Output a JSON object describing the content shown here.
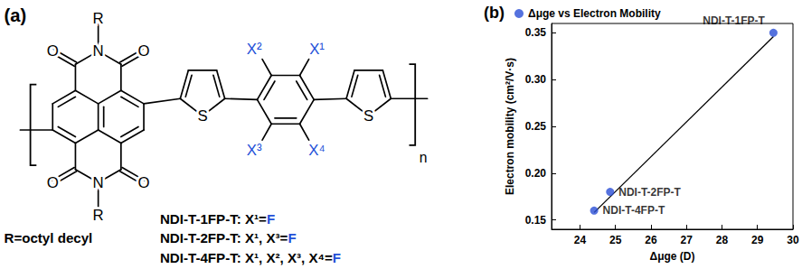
{
  "panel_a": {
    "label": "(a)",
    "structure": {
      "imide_substituent": "R",
      "imide_atom": "N",
      "carbonyl_atom": "O",
      "thiophene_atom": "S",
      "positions": [
        "X¹",
        "X²",
        "X³",
        "X⁴"
      ],
      "repeat": "n"
    },
    "substituent_note": "R=octyl decyl",
    "compounds": [
      {
        "text": "NDI-T-1FP-T: X¹=",
        "highlight": "F"
      },
      {
        "text": "NDI-T-2FP-T: X¹, X³=",
        "highlight": "F"
      },
      {
        "text": "NDI-T-4FP-T: X¹, X², X³, X⁴=",
        "highlight": "F"
      }
    ],
    "highlight_color": "#2350d8"
  },
  "chart_data": {
    "type": "scatter",
    "panel_label": "(b)",
    "x_label": "Δμge (D)",
    "y_label": "Electron mobility (cm²/V·s)",
    "xlim": [
      23.2,
      30
    ],
    "xticks": [
      24,
      25,
      26,
      27,
      28,
      29,
      30
    ],
    "ylim": [
      0.14,
      0.36
    ],
    "yticks": [
      0.15,
      {
        "value": 0.2,
        "label": "0.20"
      },
      0.25,
      {
        "value": 0.3,
        "label": "0.30"
      },
      0.35
    ],
    "grid": false,
    "legend": "upper left",
    "series": [
      {
        "name": "Δμge vs Electron Mobility",
        "color": "#2b4fd6",
        "marker": "circle",
        "x": [
          29.45,
          24.85,
          24.4
        ],
        "values": [
          0.35,
          0.18,
          0.16
        ],
        "point_labels": [
          "NDI-T-1FP-T",
          "NDI-T-2FP-T",
          "NDI-T-4FP-T"
        ]
      },
      {
        "type": "line",
        "color": "#000000",
        "line_style": "solid",
        "x": [
          24.4,
          29.45
        ],
        "values": [
          0.158,
          0.346
        ]
      }
    ]
  }
}
